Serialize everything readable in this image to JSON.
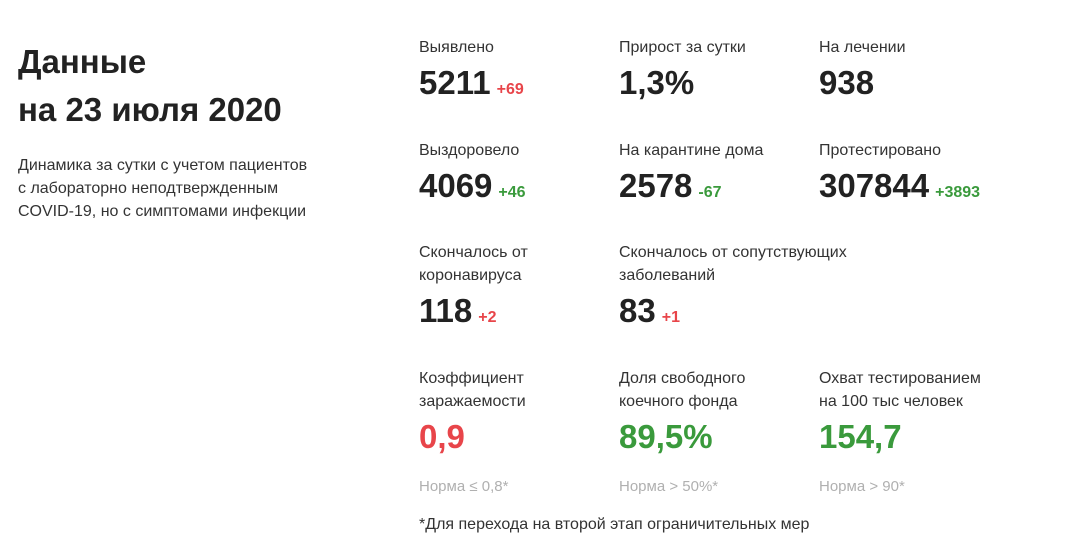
{
  "header": {
    "title_line1": "Данные",
    "title_line2": "на 23 июля 2020",
    "subtitle_line1": "Динамика за сутки с учетом пациентов",
    "subtitle_line2": "с лабораторно неподтвержденным",
    "subtitle_line3": "COVID-19, но с симптомами инфекции"
  },
  "stats": {
    "detected": {
      "label": "Выявлено",
      "value": "5211",
      "delta": "+69"
    },
    "growth": {
      "label": "Прирост за сутки",
      "value": "1,3%"
    },
    "treatment": {
      "label": "На лечении",
      "value": "938"
    },
    "recovered": {
      "label": "Выздоровело",
      "value": "4069",
      "delta": "+46"
    },
    "quarantine": {
      "label": "На карантине дома",
      "value": "2578",
      "delta": "-67"
    },
    "tested": {
      "label": "Протестировано",
      "value": "307844",
      "delta": "+3893"
    },
    "deaths_covid": {
      "label_line1": "Скончалось от",
      "label_line2": "коронавируса",
      "value": "118",
      "delta": "+2"
    },
    "deaths_other": {
      "label_line1": "Скончалось от сопутствующих",
      "label_line2": "заболеваний",
      "value": "83",
      "delta": "+1"
    },
    "infection_rate": {
      "label_line1": "Коэффициент",
      "label_line2": "заражаемости",
      "value": "0,9",
      "norm": "Норма ≤ 0,8*"
    },
    "free_beds": {
      "label_line1": "Доля свободного",
      "label_line2": "коечного фонда",
      "value": "89,5%",
      "norm": "Норма > 50%*"
    },
    "testing_coverage": {
      "label_line1": "Охват тестированием",
      "label_line2": "на 100 тыс человек",
      "value": "154,7",
      "norm": "Норма > 90*"
    }
  },
  "colors": {
    "negative": "#e8454a",
    "positive": "#3a9a3c",
    "muted": "#b0b0b0"
  },
  "footnote": "*Для перехода на второй этап ограничительных мер"
}
